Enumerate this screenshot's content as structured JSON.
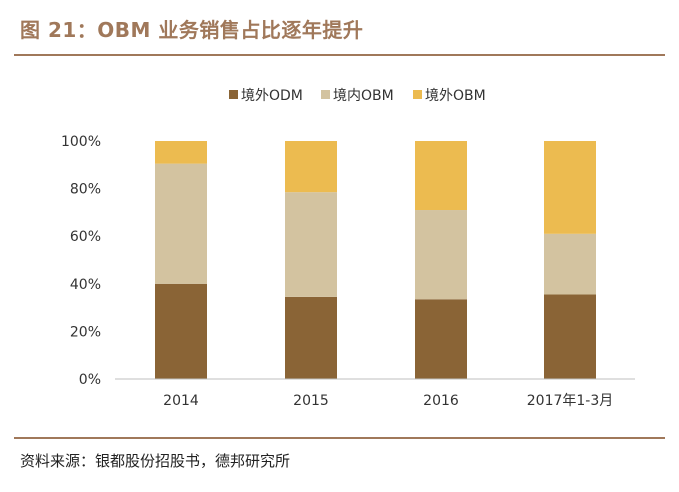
{
  "header": {
    "title": "图 21：OBM 业务销售占比逐年提升"
  },
  "footer": {
    "source": "资料来源：银都股份招股书，德邦研究所"
  },
  "chart_data": {
    "type": "bar",
    "stacked": true,
    "categories": [
      "2014",
      "2015",
      "2016",
      "2017年1-3月"
    ],
    "series": [
      {
        "name": "境外ODM",
        "color": "#8a6436",
        "values": [
          40,
          34.5,
          33.5,
          35.5
        ]
      },
      {
        "name": "境内OBM",
        "color": "#d3c3a0",
        "values": [
          50.5,
          44,
          37.5,
          25.5
        ]
      },
      {
        "name": "境外OBM",
        "color": "#ecbb50",
        "values": [
          9.5,
          21.5,
          29,
          39
        ]
      }
    ],
    "yticks": [
      "0%",
      "20%",
      "40%",
      "60%",
      "80%",
      "100%"
    ],
    "ylim": [
      0,
      100
    ],
    "legend_position": "top-center"
  }
}
